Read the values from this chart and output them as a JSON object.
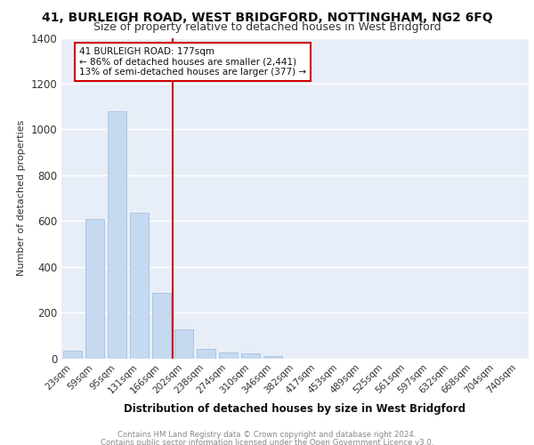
{
  "title_line1": "41, BURLEIGH ROAD, WEST BRIDGFORD, NOTTINGHAM, NG2 6FQ",
  "title_line2": "Size of property relative to detached houses in West Bridgford",
  "xlabel": "Distribution of detached houses by size in West Bridgford",
  "ylabel": "Number of detached properties",
  "footer_line1": "Contains HM Land Registry data © Crown copyright and database right 2024.",
  "footer_line2": "Contains public sector information licensed under the Open Government Licence v3.0.",
  "bar_labels": [
    "23sqm",
    "59sqm",
    "95sqm",
    "131sqm",
    "166sqm",
    "202sqm",
    "238sqm",
    "274sqm",
    "310sqm",
    "346sqm",
    "382sqm",
    "417sqm",
    "453sqm",
    "489sqm",
    "525sqm",
    "561sqm",
    "597sqm",
    "632sqm",
    "668sqm",
    "704sqm",
    "740sqm"
  ],
  "bar_values": [
    35,
    610,
    1080,
    635,
    285,
    125,
    40,
    25,
    20,
    10,
    0,
    0,
    0,
    0,
    0,
    0,
    0,
    0,
    0,
    0,
    0
  ],
  "bar_color": "#c5d9f0",
  "bar_edgecolor": "#a0b8d8",
  "vline_x": 4.5,
  "vline_color": "#cc0000",
  "annotation_text": "41 BURLEIGH ROAD: 177sqm\n← 86% of detached houses are smaller (2,441)\n13% of semi-detached houses are larger (377) →",
  "annotation_box_color": "#ffffff",
  "annotation_box_edgecolor": "#cc0000",
  "ylim": [
    0,
    1400
  ],
  "yticks": [
    0,
    200,
    400,
    600,
    800,
    1000,
    1200,
    1400
  ],
  "plot_bg_color": "#e8eef8",
  "fig_bg_color": "#ffffff",
  "grid_color": "#ffffff",
  "title_fontsize": 10,
  "subtitle_fontsize": 9
}
